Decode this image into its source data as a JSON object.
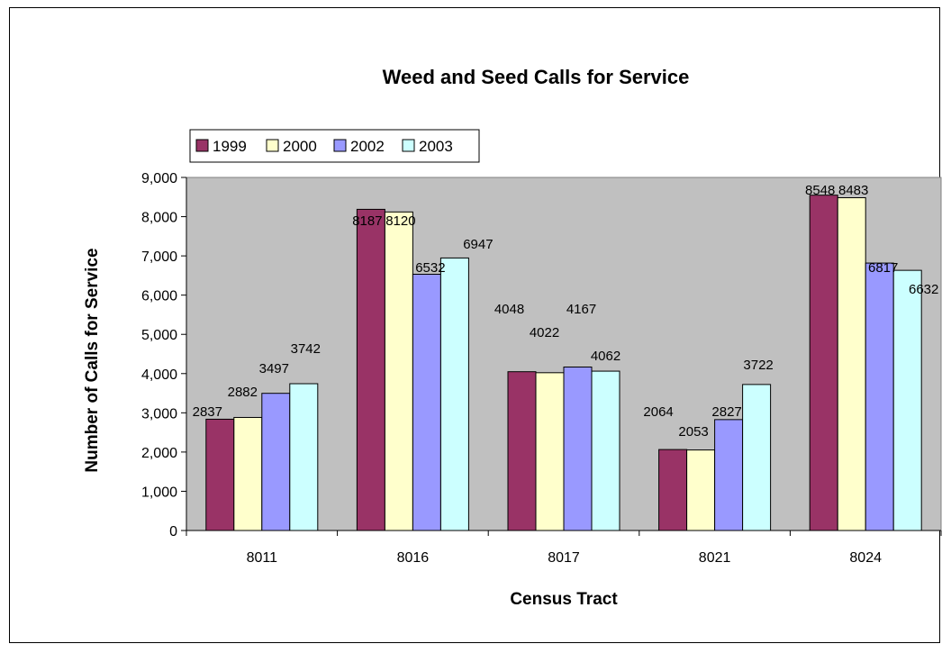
{
  "chart_data": {
    "type": "bar",
    "title": "Weed and Seed Calls for Service",
    "xlabel": "Census Tract",
    "ylabel": "Number of Calls for Service",
    "categories": [
      "8011",
      "8016",
      "8017",
      "8021",
      "8024"
    ],
    "series": [
      {
        "name": "1999",
        "values": [
          2837,
          8187,
          4048,
          2064,
          8548
        ],
        "color": "#993366"
      },
      {
        "name": "2000",
        "values": [
          2882,
          8120,
          4022,
          2053,
          8483
        ],
        "color": "#FFFFCC"
      },
      {
        "name": "2002",
        "values": [
          3497,
          6532,
          4167,
          2827,
          6817
        ],
        "color": "#9999FF"
      },
      {
        "name": "2003",
        "values": [
          3742,
          6947,
          4062,
          3722,
          6632
        ],
        "color": "#CCFFFF"
      }
    ],
    "data_labels": [
      [
        "2837",
        "8187",
        "4048",
        "2064",
        "8548"
      ],
      [
        "2882",
        "8120",
        "4022",
        "2053",
        "8483"
      ],
      [
        "3497",
        "6532",
        "4167",
        "2827",
        "6817"
      ],
      [
        "3742",
        "6947",
        "4062",
        "3722",
        "6632"
      ]
    ],
    "ylim": [
      0,
      9000
    ],
    "yticks": [
      0,
      1000,
      2000,
      3000,
      4000,
      5000,
      6000,
      7000,
      8000,
      9000
    ],
    "ytick_labels": [
      "0",
      "1,000",
      "2,000",
      "3,000",
      "4,000",
      "5,000",
      "6,000",
      "7,000",
      "8,000",
      "9,000"
    ],
    "plot_background": "#C0C0C0",
    "grid": false,
    "legend_position": "top-left"
  }
}
